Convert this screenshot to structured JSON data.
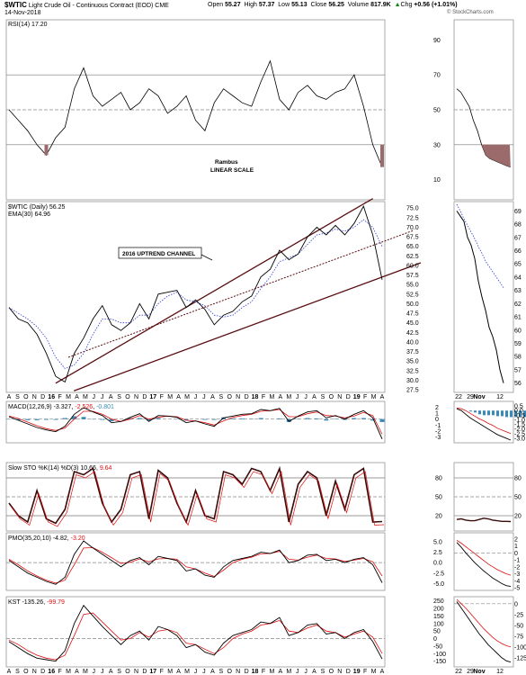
{
  "header": {
    "symbol": "$WTIC",
    "title": "Light Crude Oil - Continuous Contract (EOD)",
    "exchange": "CME",
    "date": "14-Nov-2018",
    "open_label": "Open",
    "open": "55.27",
    "high_label": "High",
    "high": "57.37",
    "low_label": "Low",
    "low": "55.13",
    "close_label": "Close",
    "close": "56.25",
    "volume_label": "Volume",
    "volume": "817.9K",
    "chg_label": "Chg",
    "chg": "+0.56 (+1.01%)",
    "chg_icon": "up-arrow-icon",
    "watermark": "© StockCharts.com"
  },
  "colors": {
    "price_line": "#000000",
    "channel": "#5a0e12",
    "ema": "#2f3ad6",
    "macd_signal": "#e01010",
    "histogram": "#3a8ab8",
    "rsi_fill": "#9b6a6a",
    "stoch_fill": "#3a0b0b",
    "axis_text": "#000000"
  },
  "panels": {
    "rsi": {
      "label": "RSI(14) 17.20",
      "title_prefix": "",
      "ticks": [
        "90",
        "70",
        "50",
        "30",
        "10"
      ],
      "annotation_author": "Rambus",
      "annotation_scale": "LINEAR SCALE",
      "levels": [
        90,
        70,
        50,
        30,
        10
      ]
    },
    "price": {
      "legend_symbol": "$WTIC (Daily) 56.25",
      "legend_ema": "EMA(30) 64.96",
      "channel_label": "2016 UPTREND CHANNEL",
      "ticks": [
        "75.0",
        "72.5",
        "70.0",
        "67.5",
        "65.0",
        "62.5",
        "60.0",
        "57.5",
        "55.0",
        "52.5",
        "50.0",
        "47.5",
        "45.0",
        "42.5",
        "40.0",
        "37.5",
        "35.0",
        "32.5",
        "30.0",
        "27.5"
      ],
      "right_ticks": [
        "69",
        "68",
        "67",
        "66",
        "65",
        "64",
        "63",
        "62",
        "61",
        "60",
        "59",
        "58",
        "57",
        "56"
      ]
    },
    "macd": {
      "label": "MACD(12,26,9)",
      "macd_value": "-3.327",
      "signal_value": "-2.526",
      "hist_value": "-0.801",
      "ticks": [
        "2",
        "1",
        "0",
        "-1",
        "-2",
        "-3"
      ],
      "right_ticks": [
        "0.5",
        "0.0",
        "-0.5",
        "-1.0",
        "-1.5",
        "-2.0",
        "-2.5",
        "-3.0"
      ]
    },
    "stoch": {
      "label": "Slow STO %K(14) %D(3)",
      "k_value": "10.66",
      "d_value": "9.64",
      "ticks": [
        "80",
        "50",
        "20"
      ],
      "right_ticks": [
        "80",
        "50",
        "20"
      ]
    },
    "pmo": {
      "label": "PMO(35,20,10)",
      "pmo_value": "-4.82",
      "signal_value": "-3.20",
      "ticks": [
        "5.0",
        "2.5",
        "0.0",
        "-2.5",
        "-5.0"
      ],
      "right_ticks": [
        "2",
        "1",
        "0",
        "-1",
        "-2",
        "-3",
        "-4",
        "-5"
      ]
    },
    "kst": {
      "label": "KST",
      "kst_value": "-135.26",
      "signal_value": "-99.79",
      "ticks": [
        "250",
        "200",
        "150",
        "100",
        "50",
        "0",
        "-50",
        "-100",
        "-150"
      ],
      "right_ticks": [
        "0",
        "-25",
        "-50",
        "-75",
        "-100",
        "-125"
      ]
    }
  },
  "x_axis": {
    "labels": [
      "A",
      "S",
      "O",
      "N",
      "D",
      "16",
      "F",
      "M",
      "A",
      "M",
      "J",
      "J",
      "A",
      "S",
      "O",
      "N",
      "D",
      "17",
      "F",
      "M",
      "A",
      "M",
      "J",
      "J",
      "A",
      "S",
      "O",
      "N",
      "D",
      "18",
      "F",
      "M",
      "A",
      "M",
      "J",
      "J",
      "A",
      "S",
      "O",
      "N",
      "D",
      "19",
      "F",
      "M",
      "A"
    ],
    "right_labels": [
      "22",
      "29",
      "Nov",
      "12"
    ]
  },
  "chart_data": [
    {
      "type": "line",
      "name": "RSI(14)",
      "ylim": [
        0,
        100
      ],
      "levels": [
        70,
        50,
        30
      ],
      "values": [
        50,
        44,
        38,
        30,
        24,
        34,
        40,
        62,
        74,
        58,
        52,
        56,
        60,
        50,
        54,
        62,
        58,
        48,
        52,
        58,
        44,
        38,
        54,
        62,
        58,
        54,
        52,
        66,
        78,
        56,
        50,
        60,
        64,
        58,
        56,
        60,
        62,
        70,
        52,
        30,
        17.2
      ]
    },
    {
      "type": "line",
      "name": "$WTIC (Daily)",
      "ylim": [
        27.5,
        76
      ],
      "dates": [
        "2015-08",
        "2015-09",
        "2015-10",
        "2015-11",
        "2015-12",
        "2016-01",
        "2016-02",
        "2016-03",
        "2016-04",
        "2016-05",
        "2016-06",
        "2016-07",
        "2016-08",
        "2016-09",
        "2016-10",
        "2016-11",
        "2016-12",
        "2017-01",
        "2017-02",
        "2017-03",
        "2017-04",
        "2017-05",
        "2017-06",
        "2017-07",
        "2017-08",
        "2017-09",
        "2017-10",
        "2017-11",
        "2017-12",
        "2018-01",
        "2018-02",
        "2018-03",
        "2018-04",
        "2018-05",
        "2018-06",
        "2018-07",
        "2018-08",
        "2018-09",
        "2018-10",
        "2018-10-20",
        "2018-11-14"
      ],
      "values": [
        49,
        46,
        45,
        42,
        37,
        31,
        29.5,
        37,
        41,
        46,
        49.5,
        44.5,
        43,
        45,
        50,
        46,
        52.5,
        53,
        53.5,
        49,
        51,
        48.5,
        44.5,
        47,
        48,
        50.5,
        52,
        57,
        59,
        64,
        61.5,
        63,
        67.5,
        70,
        68,
        70.5,
        68,
        71,
        75.5,
        68,
        56.25
      ],
      "ema30_values": [
        49,
        47.5,
        46,
        44,
        41,
        36,
        33,
        34,
        37,
        42,
        46,
        46,
        45,
        45,
        47,
        47,
        50,
        52,
        53,
        51,
        50.5,
        49.5,
        47,
        46.5,
        47,
        49,
        50.5,
        54,
        57,
        61,
        62,
        63,
        65.5,
        68,
        68.5,
        69.5,
        69,
        70,
        72,
        70,
        64.96
      ],
      "channel_label": "2016 UPTREND CHANNEL"
    },
    {
      "type": "line",
      "name": "MACD(12,26,9)",
      "ylim": [
        -3.5,
        2.5
      ],
      "values": [
        0.4,
        -0.2,
        -0.8,
        -1.4,
        -1.8,
        -2.1,
        -1.2,
        0.8,
        1.9,
        1.2,
        0.6,
        -0.6,
        -0.4,
        0.3,
        0.9,
        -0.4,
        0.6,
        0.5,
        0.3,
        -0.6,
        -0.3,
        -0.8,
        -1.2,
        0.2,
        0.5,
        0.8,
        0.9,
        1.6,
        1.4,
        1.8,
        -0.4,
        0.5,
        1.2,
        1.4,
        0.2,
        0.6,
        0.0,
        0.8,
        1.4,
        0.2,
        -3.327
      ],
      "signal": [
        0.5,
        0.1,
        -0.5,
        -1.1,
        -1.6,
        -1.9,
        -1.5,
        0.0,
        1.3,
        1.3,
        0.8,
        0.0,
        -0.4,
        0.0,
        0.6,
        0.0,
        0.3,
        0.5,
        0.4,
        -0.2,
        -0.3,
        -0.6,
        -1.0,
        -0.3,
        0.3,
        0.6,
        0.8,
        1.3,
        1.4,
        1.6,
        0.4,
        0.4,
        0.9,
        1.2,
        0.6,
        0.5,
        0.2,
        0.5,
        1.1,
        0.6,
        -2.526
      ]
    },
    {
      "type": "line",
      "name": "Slow STO %K(14) %D(3)",
      "ylim": [
        0,
        100
      ],
      "values": [
        40,
        20,
        10,
        60,
        15,
        8,
        30,
        90,
        85,
        95,
        40,
        10,
        30,
        85,
        90,
        15,
        92,
        80,
        40,
        10,
        60,
        20,
        15,
        90,
        85,
        70,
        95,
        90,
        60,
        95,
        10,
        70,
        90,
        80,
        20,
        75,
        30,
        85,
        95,
        10,
        10.66
      ]
    },
    {
      "type": "line",
      "name": "PMO(35,20,10)",
      "ylim": [
        -6,
        6.5
      ],
      "values": [
        0.5,
        -1.0,
        -2.5,
        -3.5,
        -4.5,
        -5.2,
        -3.5,
        2.0,
        5.2,
        3.5,
        2.0,
        0.5,
        -1.0,
        0.5,
        1.2,
        -0.5,
        1.5,
        1.0,
        0.5,
        -2.0,
        -1.5,
        -3.0,
        -3.5,
        -1.0,
        0.5,
        1.0,
        1.5,
        2.5,
        2.2,
        3.0,
        0.0,
        0.5,
        1.8,
        2.0,
        0.5,
        0.8,
        0.0,
        0.8,
        1.2,
        -0.5,
        -4.82
      ],
      "signal": [
        0.8,
        -0.5,
        -2.0,
        -3.2,
        -4.2,
        -4.9,
        -4.2,
        -0.5,
        3.5,
        3.6,
        2.5,
        1.2,
        -0.2,
        0.1,
        0.9,
        0.2,
        0.9,
        1.0,
        0.8,
        -1.0,
        -1.5,
        -2.5,
        -3.3,
        -1.8,
        0.0,
        0.8,
        1.3,
        2.1,
        2.2,
        2.7,
        0.8,
        0.6,
        1.3,
        1.8,
        1.0,
        0.9,
        0.3,
        0.6,
        1.0,
        0.2,
        -3.2
      ]
    },
    {
      "type": "line",
      "name": "KST",
      "ylim": [
        -170,
        260
      ],
      "values": [
        -20,
        -60,
        -100,
        -130,
        -140,
        -150,
        -80,
        100,
        220,
        150,
        80,
        20,
        -40,
        20,
        50,
        -10,
        80,
        60,
        20,
        -60,
        -40,
        -90,
        -110,
        -30,
        20,
        40,
        60,
        110,
        100,
        140,
        20,
        40,
        90,
        100,
        30,
        40,
        0,
        40,
        60,
        -20,
        -135.26
      ],
      "signal": [
        -10,
        -40,
        -80,
        -110,
        -130,
        -140,
        -110,
        20,
        160,
        170,
        110,
        50,
        -10,
        0,
        40,
        10,
        50,
        60,
        40,
        -30,
        -40,
        -70,
        -100,
        -60,
        0,
        30,
        50,
        90,
        100,
        120,
        50,
        40,
        70,
        90,
        50,
        40,
        10,
        30,
        50,
        10,
        -99.79
      ]
    }
  ]
}
